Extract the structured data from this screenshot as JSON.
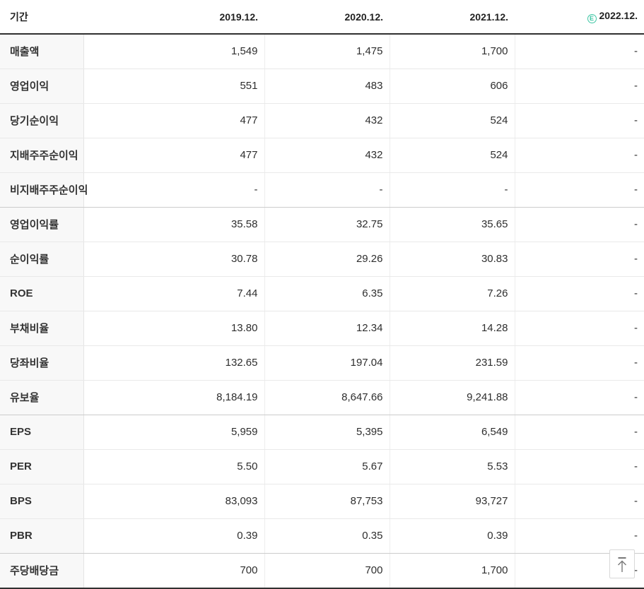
{
  "table": {
    "period_label": "기간",
    "estimate_badge": "E",
    "columns": [
      {
        "label": "2019.12.",
        "estimate": false
      },
      {
        "label": "2020.12.",
        "estimate": false
      },
      {
        "label": "2021.12.",
        "estimate": false
      },
      {
        "label": "2022.12.",
        "estimate": true
      }
    ],
    "rows": [
      {
        "label": "매출액",
        "values": [
          "1,549",
          "1,475",
          "1,700",
          "-"
        ]
      },
      {
        "label": "영업이익",
        "values": [
          "551",
          "483",
          "606",
          "-"
        ]
      },
      {
        "label": "당기순이익",
        "values": [
          "477",
          "432",
          "524",
          "-"
        ]
      },
      {
        "label": "지배주주순이익",
        "values": [
          "477",
          "432",
          "524",
          "-"
        ]
      },
      {
        "label": "비지배주주순이익",
        "values": [
          "-",
          "-",
          "-",
          "-"
        ],
        "group_end": true
      },
      {
        "label": "영업이익률",
        "values": [
          "35.58",
          "32.75",
          "35.65",
          "-"
        ]
      },
      {
        "label": "순이익률",
        "values": [
          "30.78",
          "29.26",
          "30.83",
          "-"
        ]
      },
      {
        "label": "ROE",
        "values": [
          "7.44",
          "6.35",
          "7.26",
          "-"
        ]
      },
      {
        "label": "부채비율",
        "values": [
          "13.80",
          "12.34",
          "14.28",
          "-"
        ]
      },
      {
        "label": "당좌비율",
        "values": [
          "132.65",
          "197.04",
          "231.59",
          "-"
        ]
      },
      {
        "label": "유보율",
        "values": [
          "8,184.19",
          "8,647.66",
          "9,241.88",
          "-"
        ],
        "group_end": true
      },
      {
        "label": "EPS",
        "values": [
          "5,959",
          "5,395",
          "6,549",
          "-"
        ]
      },
      {
        "label": "PER",
        "values": [
          "5.50",
          "5.67",
          "5.53",
          "-"
        ]
      },
      {
        "label": "BPS",
        "values": [
          "83,093",
          "87,753",
          "93,727",
          "-"
        ]
      },
      {
        "label": "PBR",
        "values": [
          "0.39",
          "0.35",
          "0.39",
          "-"
        ],
        "group_end": true
      },
      {
        "label": "주당배당금",
        "values": [
          "700",
          "700",
          "1,700",
          "-"
        ]
      }
    ]
  },
  "colors": {
    "estimate_accent": "#3ec6a4",
    "header_border": "#303030",
    "row_border": "#e9e9e9",
    "group_border": "#cccccc",
    "label_column_bg": "#f8f8f8"
  },
  "scroll_top_button": {
    "icon": "arrow-up-to-top"
  }
}
